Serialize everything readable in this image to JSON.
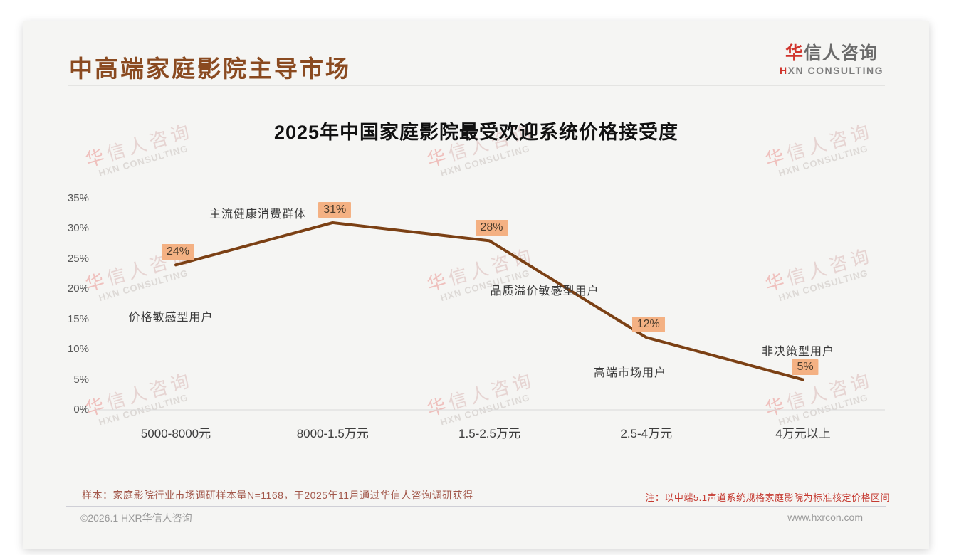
{
  "page": {
    "header": {
      "title": "中高端家庭影院主导市场",
      "logo_cn": "华信人咨询",
      "logo_en": "HXN CONSULTING"
    },
    "watermark": {
      "line1": "华信人咨询",
      "line2": "HXN CONSULTING"
    },
    "footer": {
      "sample_note": "样本：家庭影院行业市场调研样本量N=1168，于2025年11月通过华信人咨询调研获得",
      "price_note": "注：以中端5.1声道系统规格家庭影院为标准核定价格区间",
      "copyright": "©2026.1 HXR华信人咨询",
      "website": "www.hxrcon.com"
    }
  },
  "chart_data": {
    "type": "line",
    "title": "2025年中国家庭影院最受欢迎系统价格接受度",
    "categories": [
      "5000-8000元",
      "8000-1.5万元",
      "1.5-2.5万元",
      "2.5-4万元",
      "4万元以上"
    ],
    "values": [
      24,
      31,
      28,
      12,
      5
    ],
    "value_labels": [
      "24%",
      "31%",
      "28%",
      "12%",
      "5%"
    ],
    "point_annotations": [
      "价格敏感型用户",
      "主流健康消费群体",
      "品质溢价敏感型用户",
      "高端市场用户",
      "非决策型用户"
    ],
    "y_ticks": [
      "35%",
      "30%",
      "25%",
      "20%",
      "15%",
      "10%",
      "5%",
      "0%"
    ],
    "ylim": [
      0,
      35
    ],
    "xlabel": "",
    "ylabel": "",
    "grid": false,
    "legend": false,
    "line_color": "#7b4014",
    "badge_bg": "#f4b183",
    "axis_color": "#d9d9d9"
  }
}
